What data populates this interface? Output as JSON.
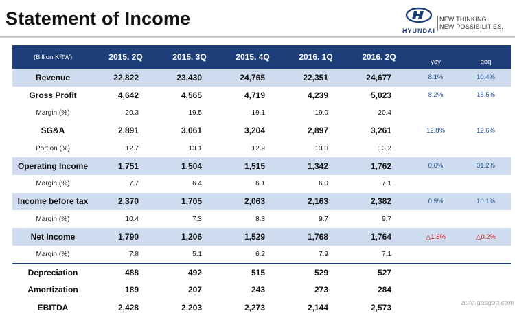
{
  "title": "Statement of Income",
  "logo": {
    "brand": "HYUNDAI",
    "tagline_1": "NEW THINKING.",
    "tagline_2": "NEW POSSIBILITIES."
  },
  "table": {
    "unit": "(Billion KRW)",
    "columns": [
      "2015. 2Q",
      "2015. 3Q",
      "2015. 4Q",
      "2016. 1Q",
      "2016. 2Q"
    ],
    "yoy_label": "yoy",
    "qoq_label": "qoq",
    "rows": [
      {
        "label": "Revenue",
        "values": [
          "22,822",
          "23,430",
          "24,765",
          "22,351",
          "24,677"
        ],
        "yoy": "8.1%",
        "qoq": "10.4%"
      },
      {
        "label": "Gross Profit",
        "values": [
          "4,642",
          "4,565",
          "4,719",
          "4,239",
          "5,023"
        ],
        "yoy": "8.2%",
        "qoq": "18.5%"
      },
      {
        "label": "Margin (%)",
        "values": [
          "20.3",
          "19.5",
          "19.1",
          "19.0",
          "20.4"
        ],
        "yoy": "",
        "qoq": ""
      },
      {
        "label": "SG&A",
        "values": [
          "2,891",
          "3,061",
          "3,204",
          "2,897",
          "3,261"
        ],
        "yoy": "12.8%",
        "qoq": "12.6%"
      },
      {
        "label": "Portion (%)",
        "values": [
          "12.7",
          "13.1",
          "12.9",
          "13.0",
          "13.2"
        ],
        "yoy": "",
        "qoq": ""
      },
      {
        "label": "Operating Income",
        "values": [
          "1,751",
          "1,504",
          "1,515",
          "1,342",
          "1,762"
        ],
        "yoy": "0.6%",
        "qoq": "31.2%"
      },
      {
        "label": "Margin (%)",
        "values": [
          "7.7",
          "6.4",
          "6.1",
          "6.0",
          "7.1"
        ],
        "yoy": "",
        "qoq": ""
      },
      {
        "label": "Income before tax",
        "values": [
          "2,370",
          "1,705",
          "2,063",
          "2,163",
          "2,382"
        ],
        "yoy": "0.5%",
        "qoq": "10.1%"
      },
      {
        "label": "Margin (%)",
        "values": [
          "10.4",
          "7.3",
          "8.3",
          "9.7",
          "9.7"
        ],
        "yoy": "",
        "qoq": ""
      },
      {
        "label": "Net Income",
        "values": [
          "1,790",
          "1,206",
          "1,529",
          "1,768",
          "1,764"
        ],
        "yoy": "△1.5%",
        "qoq": "△0.2%"
      },
      {
        "label": "Margin (%)",
        "values": [
          "7.8",
          "5.1",
          "6.2",
          "7.9",
          "7.1"
        ],
        "yoy": "",
        "qoq": ""
      },
      {
        "label": "Depreciation",
        "values": [
          "488",
          "492",
          "515",
          "529",
          "527"
        ],
        "yoy": "",
        "qoq": ""
      },
      {
        "label": "Amortization",
        "values": [
          "189",
          "207",
          "243",
          "273",
          "284"
        ],
        "yoy": "",
        "qoq": ""
      },
      {
        "label": "EBITDA",
        "values": [
          "2,428",
          "2,203",
          "2,273",
          "2,144",
          "2,573"
        ],
        "yoy": "",
        "qoq": ""
      }
    ]
  },
  "watermark": "auto.gasgoo.com"
}
